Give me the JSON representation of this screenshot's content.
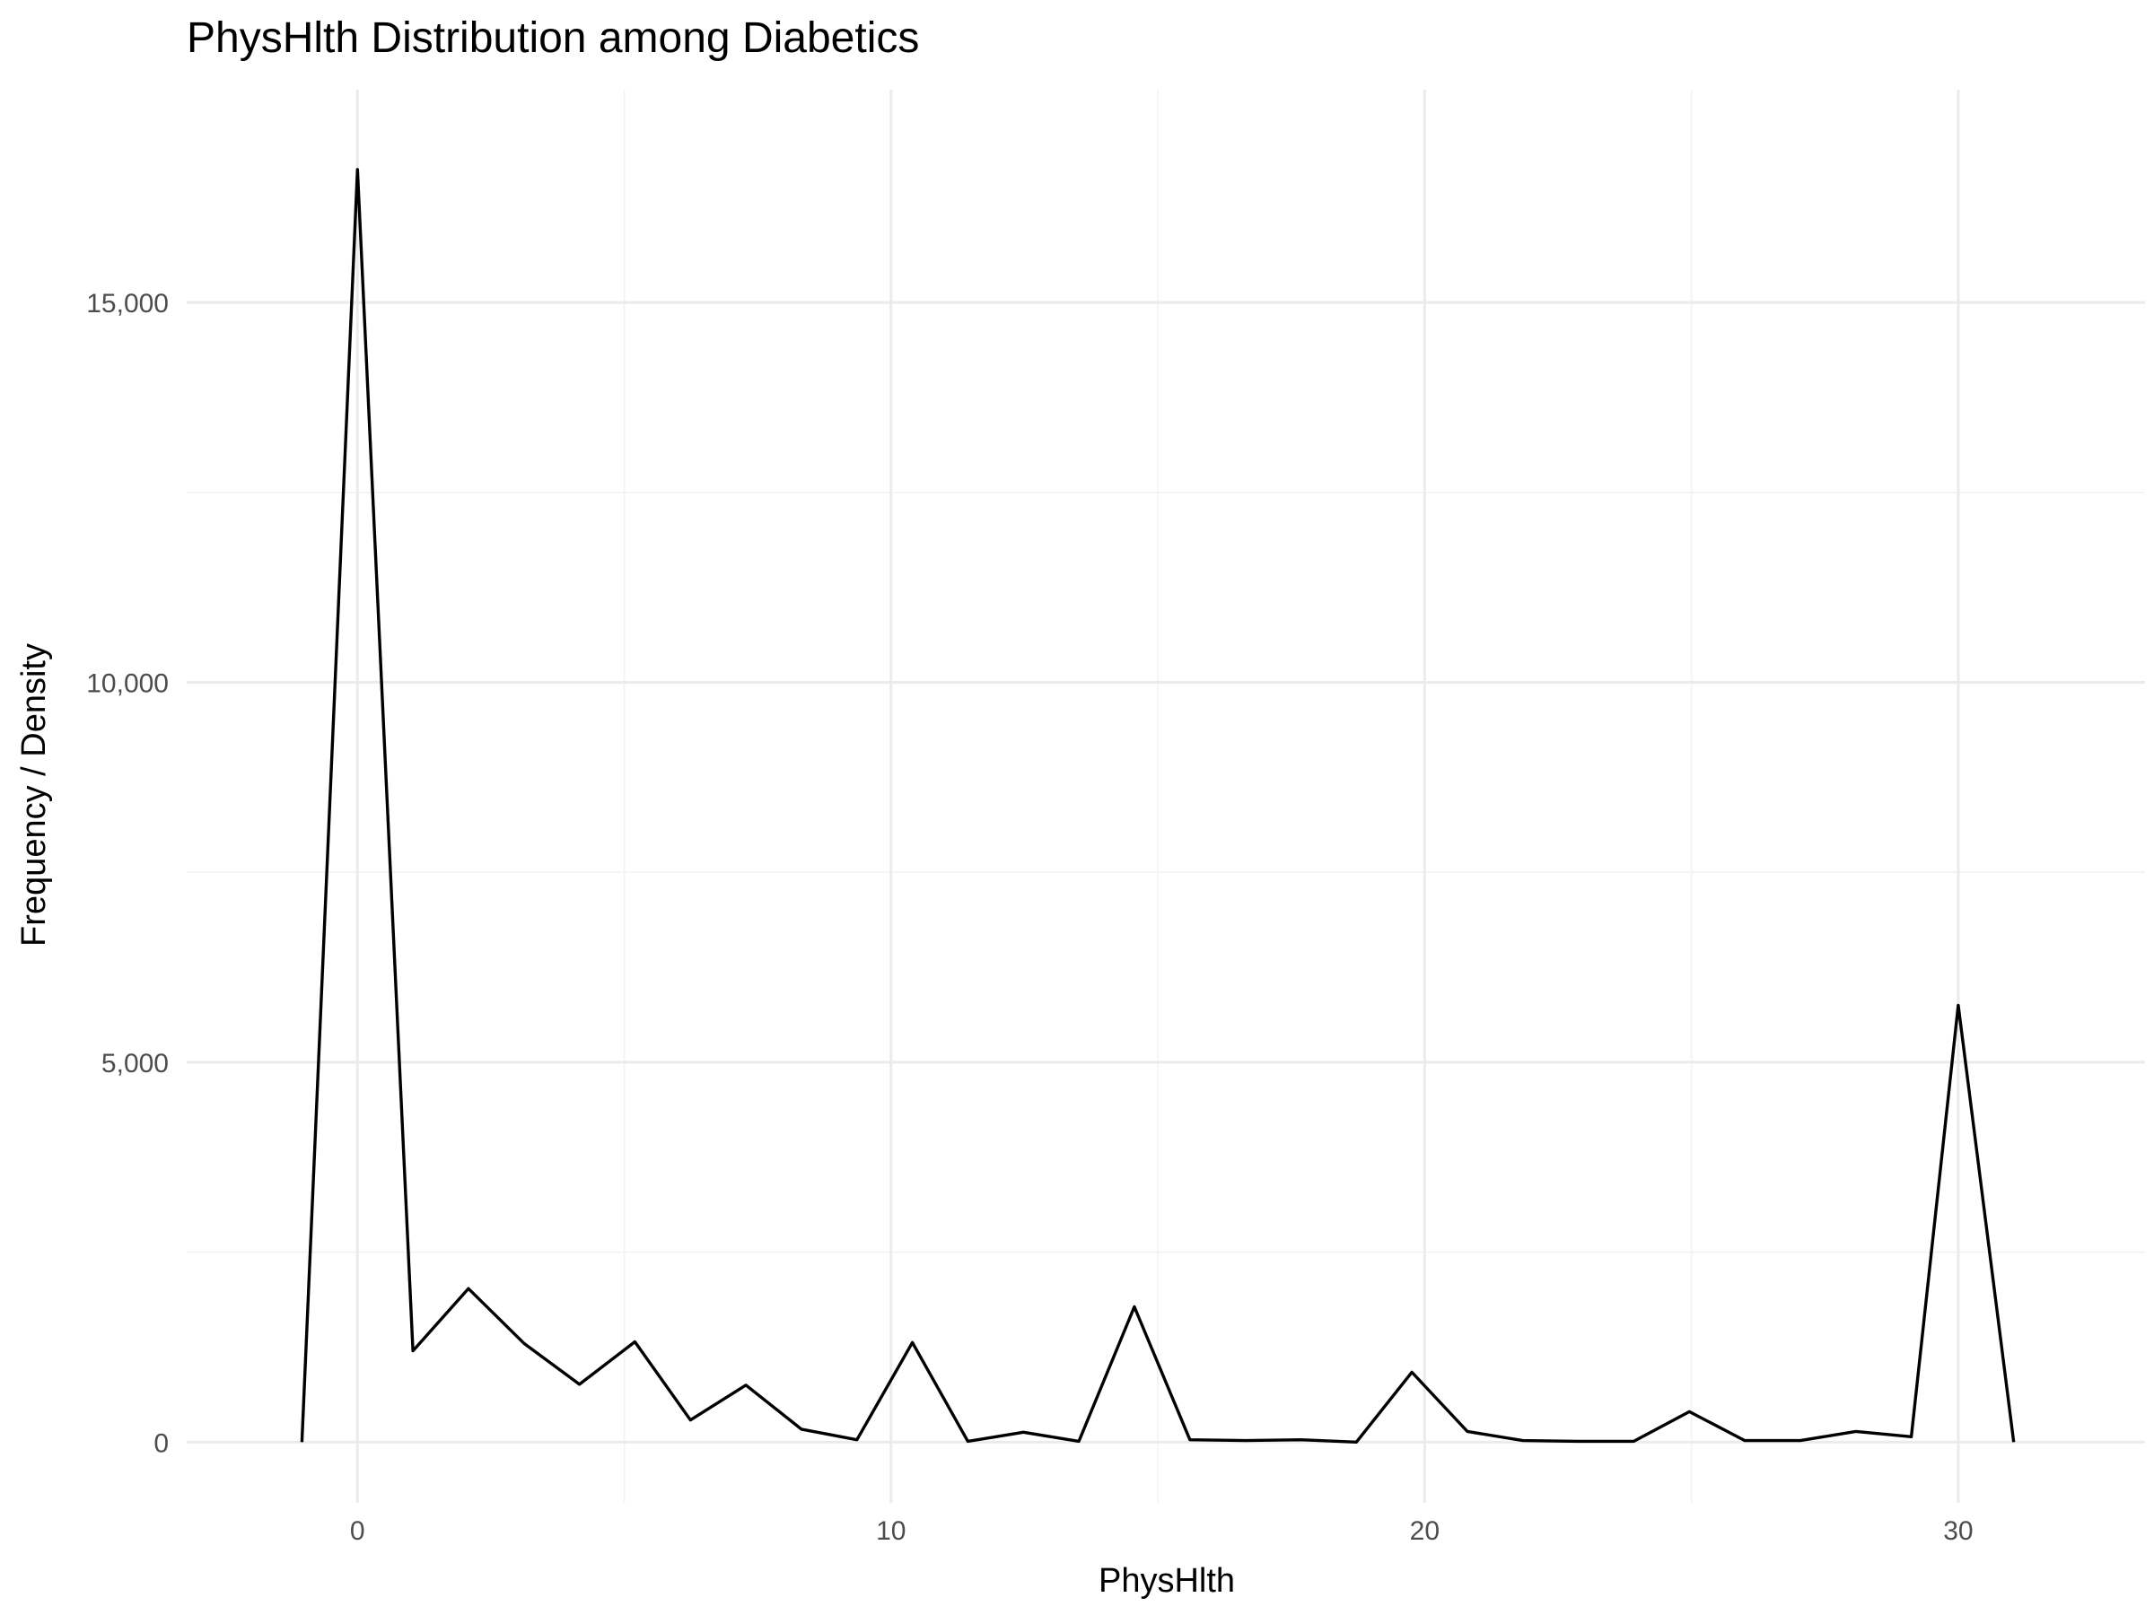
{
  "chart_data": {
    "type": "line",
    "title": "PhysHlth Distribution among Diabetics",
    "xlabel": "PhysHlth",
    "ylabel": "Frequency / Density",
    "xlim": [
      -3.2,
      33.5
    ],
    "ylim": [
      -800,
      17800
    ],
    "x_ticks": [
      0,
      10,
      20,
      30
    ],
    "x_tick_labels": [
      "0",
      "10",
      "20",
      "30"
    ],
    "x_minor_ticks": [
      5,
      15,
      25
    ],
    "y_ticks": [
      0,
      5000,
      10000,
      15000
    ],
    "y_tick_labels": [
      "0",
      "5,000",
      "10,000",
      "15,000"
    ],
    "y_minor_ticks": [
      2500,
      7500,
      12500
    ],
    "grid": true,
    "series": [
      {
        "x": [
          -1.04,
          0,
          1.04,
          2.08,
          3.12,
          4.16,
          5.2,
          6.24,
          7.28,
          8.32,
          9.36,
          10.4,
          11.44,
          12.48,
          13.52,
          14.56,
          15.6,
          16.64,
          17.68,
          18.72,
          19.76,
          20.8,
          21.84,
          22.88,
          23.92,
          24.96,
          26.0,
          27.04,
          28.08,
          29.12,
          30.0,
          31.04
        ],
        "values": [
          0,
          16750,
          1200,
          2020,
          1300,
          760,
          1320,
          290,
          750,
          170,
          30,
          1310,
          10,
          130,
          10,
          1780,
          30,
          20,
          30,
          0,
          920,
          140,
          20,
          10,
          10,
          400,
          20,
          20,
          140,
          70,
          5750,
          0
        ]
      }
    ]
  }
}
